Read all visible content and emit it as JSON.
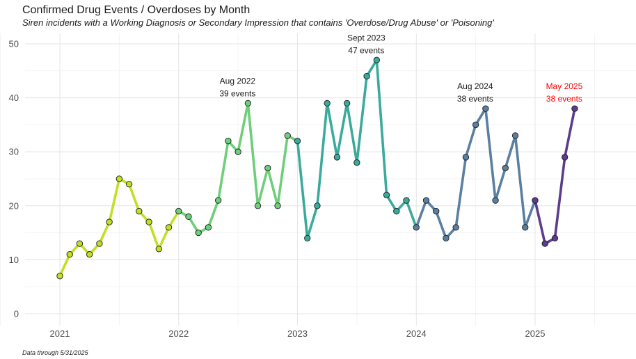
{
  "chart_data": {
    "type": "line",
    "title": "Confirmed Drug Events / Overdoses by Month",
    "subtitle": "Siren incidents with a Working Diagnosis or Secondary Impression that contains 'Overdose/Drug Abuse' or 'Poisoning'",
    "caption": "Data through 5/31/2025",
    "xlabel": "",
    "ylabel": "",
    "ylim": [
      0,
      50
    ],
    "y_ticks": [
      "0",
      "10",
      "20",
      "30",
      "40",
      "50"
    ],
    "x_ticks": [
      "2021",
      "2022",
      "2023",
      "2024",
      "2025"
    ],
    "grid": true,
    "x": [
      "2021-01",
      "2021-02",
      "2021-03",
      "2021-04",
      "2021-05",
      "2021-06",
      "2021-07",
      "2021-08",
      "2021-09",
      "2021-10",
      "2021-11",
      "2021-12",
      "2022-01",
      "2022-02",
      "2022-03",
      "2022-04",
      "2022-05",
      "2022-06",
      "2022-07",
      "2022-08",
      "2022-09",
      "2022-10",
      "2022-11",
      "2022-12",
      "2023-01",
      "2023-02",
      "2023-03",
      "2023-04",
      "2023-05",
      "2023-06",
      "2023-07",
      "2023-08",
      "2023-09",
      "2023-10",
      "2023-11",
      "2023-12",
      "2024-01",
      "2024-02",
      "2024-03",
      "2024-04",
      "2024-05",
      "2024-06",
      "2024-07",
      "2024-08",
      "2024-09",
      "2024-10",
      "2024-11",
      "2024-12",
      "2025-01",
      "2025-02",
      "2025-03",
      "2025-04",
      "2025-05"
    ],
    "values": [
      7,
      11,
      13,
      11,
      13,
      17,
      25,
      24,
      19,
      17,
      12,
      16,
      19,
      18,
      15,
      16,
      21,
      32,
      30,
      39,
      20,
      27,
      20,
      33,
      32,
      14,
      20,
      39,
      29,
      39,
      28,
      44,
      47,
      22,
      19,
      21,
      16,
      21,
      19,
      14,
      16,
      29,
      35,
      38,
      21,
      27,
      33,
      16,
      21,
      13,
      14,
      29,
      38
    ],
    "year_colors": {
      "2021": "#c2df23",
      "2022": "#6ece7a",
      "2023": "#3aaa9a",
      "2024": "#5a7fa0",
      "2025": "#5c3d8c"
    },
    "annotations": [
      {
        "x": "2022-08",
        "lines": [
          "Aug 2022",
          "39 events"
        ],
        "color": "#1a1a1a"
      },
      {
        "x": "2023-09",
        "lines": [
          "Sept 2023",
          "47 events"
        ],
        "color": "#1a1a1a"
      },
      {
        "x": "2024-08",
        "lines": [
          "Aug 2024",
          "38 events"
        ],
        "color": "#1a1a1a"
      },
      {
        "x": "2025-05",
        "lines": [
          "May 2025",
          "38 events"
        ],
        "color": "#ff0000"
      }
    ]
  }
}
